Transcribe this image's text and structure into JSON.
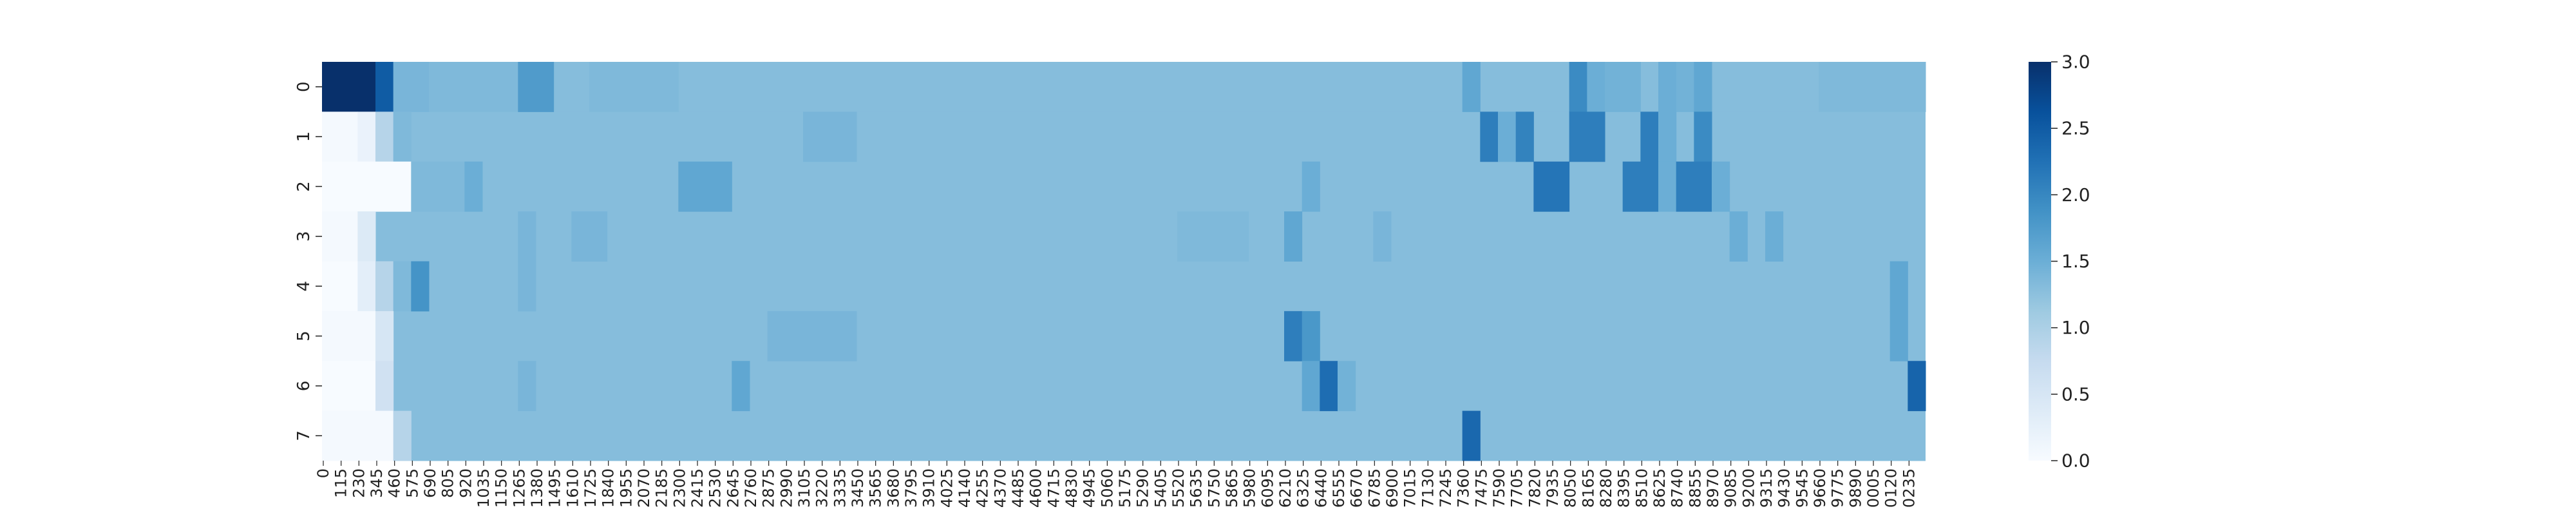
{
  "chart_data": {
    "type": "heatmap",
    "title": "",
    "xlabel": "",
    "ylabel": "",
    "colormap": "Blues",
    "color_scale": {
      "min": 0.0,
      "max": 3.0,
      "ticks": [
        0.0,
        0.5,
        1.0,
        1.5,
        2.0,
        2.5,
        3.0
      ]
    },
    "colorbar_tick_labels": [
      "0.0",
      "0.5",
      "1.0",
      "1.5",
      "2.0",
      "2.5",
      "3.0"
    ],
    "y_categories": [
      "0",
      "1",
      "2",
      "3",
      "4",
      "5",
      "6",
      "7"
    ],
    "x_tick_labels": [
      "0",
      "115",
      "230",
      "345",
      "460",
      "575",
      "690",
      "805",
      "920",
      "1035",
      "1150",
      "1265",
      "1380",
      "1495",
      "1610",
      "1725",
      "1840",
      "1955",
      "2070",
      "2185",
      "2300",
      "2415",
      "2530",
      "2645",
      "2760",
      "2875",
      "2990",
      "3105",
      "3220",
      "3335",
      "3450",
      "3565",
      "3680",
      "3795",
      "3910",
      "4025",
      "4140",
      "4255",
      "4370",
      "4485",
      "4600",
      "4715",
      "4830",
      "4945",
      "5060",
      "5175",
      "5290",
      "5405",
      "5520",
      "5635",
      "5750",
      "5865",
      "5980",
      "6095",
      "6210",
      "6325",
      "6440",
      "6555",
      "6670",
      "6785",
      "6900",
      "7015",
      "7130",
      "7245",
      "7360",
      "7475",
      "7590",
      "7705",
      "7820",
      "7935",
      "8050",
      "8165",
      "8280",
      "8395",
      "8510",
      "8625",
      "8740",
      "8855",
      "8970",
      "9085",
      "9200",
      "9315",
      "9430",
      "9545",
      "9660",
      "9775",
      "9890",
      "0005",
      "0120",
      "0235"
    ],
    "baseline_value": 1.3,
    "blocks": [
      {
        "row": 0,
        "from": 0,
        "to": 3,
        "value": 3.0
      },
      {
        "row": 0,
        "from": 3,
        "to": 4,
        "value": 2.5
      },
      {
        "row": 0,
        "from": 4,
        "to": 6,
        "value": 1.4
      },
      {
        "row": 0,
        "from": 6,
        "to": 11,
        "value": 1.35
      },
      {
        "row": 0,
        "from": 11,
        "to": 13,
        "value": 1.75
      },
      {
        "row": 0,
        "from": 15,
        "to": 20,
        "value": 1.35
      },
      {
        "row": 0,
        "from": 64,
        "to": 65,
        "value": 1.6
      },
      {
        "row": 0,
        "from": 70,
        "to": 71,
        "value": 1.95
      },
      {
        "row": 0,
        "from": 71,
        "to": 72,
        "value": 1.5
      },
      {
        "row": 0,
        "from": 72,
        "to": 74,
        "value": 1.45
      },
      {
        "row": 0,
        "from": 75,
        "to": 76,
        "value": 1.5
      },
      {
        "row": 0,
        "from": 76,
        "to": 77,
        "value": 1.45
      },
      {
        "row": 0,
        "from": 77,
        "to": 78,
        "value": 1.6
      },
      {
        "row": 0,
        "from": 84,
        "to": 90,
        "value": 1.35
      },
      {
        "row": 1,
        "from": 0,
        "to": 2,
        "value": 0.05
      },
      {
        "row": 1,
        "from": 2,
        "to": 3,
        "value": 0.2
      },
      {
        "row": 1,
        "from": 3,
        "to": 4,
        "value": 0.9
      },
      {
        "row": 1,
        "from": 4,
        "to": 5,
        "value": 1.35
      },
      {
        "row": 1,
        "from": 27,
        "to": 30,
        "value": 1.4
      },
      {
        "row": 1,
        "from": 65,
        "to": 66,
        "value": 2.1
      },
      {
        "row": 1,
        "from": 66,
        "to": 67,
        "value": 1.5
      },
      {
        "row": 1,
        "from": 67,
        "to": 68,
        "value": 2.05
      },
      {
        "row": 1,
        "from": 70,
        "to": 72,
        "value": 2.1
      },
      {
        "row": 1,
        "from": 74,
        "to": 75,
        "value": 2.1
      },
      {
        "row": 1,
        "from": 75,
        "to": 76,
        "value": 1.5
      },
      {
        "row": 1,
        "from": 77,
        "to": 78,
        "value": 1.95
      },
      {
        "row": 2,
        "from": 0,
        "to": 5,
        "value": 0.0
      },
      {
        "row": 2,
        "from": 5,
        "to": 8,
        "value": 1.35
      },
      {
        "row": 2,
        "from": 8,
        "to": 9,
        "value": 1.5
      },
      {
        "row": 2,
        "from": 20,
        "to": 23,
        "value": 1.6
      },
      {
        "row": 2,
        "from": 55,
        "to": 56,
        "value": 1.5
      },
      {
        "row": 2,
        "from": 68,
        "to": 70,
        "value": 2.2
      },
      {
        "row": 2,
        "from": 73,
        "to": 75,
        "value": 2.1
      },
      {
        "row": 2,
        "from": 75,
        "to": 76,
        "value": 1.5
      },
      {
        "row": 2,
        "from": 76,
        "to": 78,
        "value": 2.1
      },
      {
        "row": 2,
        "from": 78,
        "to": 79,
        "value": 1.5
      },
      {
        "row": 3,
        "from": 0,
        "to": 2,
        "value": 0.05
      },
      {
        "row": 3,
        "from": 2,
        "to": 3,
        "value": 0.4
      },
      {
        "row": 3,
        "from": 11,
        "to": 12,
        "value": 1.4
      },
      {
        "row": 3,
        "from": 14,
        "to": 16,
        "value": 1.4
      },
      {
        "row": 3,
        "from": 48,
        "to": 52,
        "value": 1.35
      },
      {
        "row": 3,
        "from": 54,
        "to": 55,
        "value": 1.6
      },
      {
        "row": 3,
        "from": 59,
        "to": 60,
        "value": 1.4
      },
      {
        "row": 3,
        "from": 79,
        "to": 80,
        "value": 1.5
      },
      {
        "row": 3,
        "from": 81,
        "to": 82,
        "value": 1.5
      },
      {
        "row": 4,
        "from": 0,
        "to": 2,
        "value": 0.0
      },
      {
        "row": 4,
        "from": 2,
        "to": 3,
        "value": 0.3
      },
      {
        "row": 4,
        "from": 3,
        "to": 4,
        "value": 0.9
      },
      {
        "row": 4,
        "from": 4,
        "to": 5,
        "value": 1.35
      },
      {
        "row": 4,
        "from": 5,
        "to": 6,
        "value": 1.85
      },
      {
        "row": 4,
        "from": 11,
        "to": 12,
        "value": 1.4
      },
      {
        "row": 4,
        "from": 88,
        "to": 89,
        "value": 1.6
      },
      {
        "row": 5,
        "from": 0,
        "to": 3,
        "value": 0.05
      },
      {
        "row": 5,
        "from": 3,
        "to": 4,
        "value": 0.5
      },
      {
        "row": 5,
        "from": 25,
        "to": 30,
        "value": 1.4
      },
      {
        "row": 5,
        "from": 54,
        "to": 55,
        "value": 2.1
      },
      {
        "row": 5,
        "from": 55,
        "to": 56,
        "value": 1.8
      },
      {
        "row": 5,
        "from": 88,
        "to": 89,
        "value": 1.6
      },
      {
        "row": 6,
        "from": 0,
        "to": 3,
        "value": 0.0
      },
      {
        "row": 6,
        "from": 3,
        "to": 4,
        "value": 0.6
      },
      {
        "row": 6,
        "from": 11,
        "to": 12,
        "value": 1.4
      },
      {
        "row": 6,
        "from": 23,
        "to": 24,
        "value": 1.6
      },
      {
        "row": 6,
        "from": 55,
        "to": 56,
        "value": 1.6
      },
      {
        "row": 6,
        "from": 56,
        "to": 57,
        "value": 2.3
      },
      {
        "row": 6,
        "from": 57,
        "to": 58,
        "value": 1.45
      },
      {
        "row": 6,
        "from": 89,
        "to": 90,
        "value": 2.4
      },
      {
        "row": 7,
        "from": 0,
        "to": 4,
        "value": 0.05
      },
      {
        "row": 7,
        "from": 4,
        "to": 5,
        "value": 0.9
      },
      {
        "row": 7,
        "from": 64,
        "to": 65,
        "value": 2.35
      }
    ]
  }
}
